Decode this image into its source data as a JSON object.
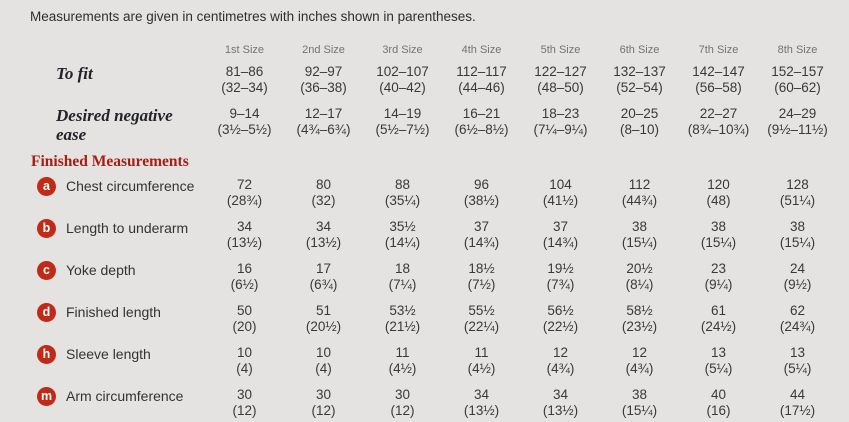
{
  "intro": "Measurements are given in centimetres with inches shown in parentheses.",
  "size_headers": [
    "1st Size",
    "2nd Size",
    "3rd Size",
    "4th Size",
    "5th Size",
    "6th Size",
    "7th Size",
    "8th Size"
  ],
  "fit_rows": [
    {
      "label": "To fit",
      "cm": [
        "81–86",
        "92–97",
        "102–107",
        "112–117",
        "122–127",
        "132–137",
        "142–147",
        "152–157"
      ],
      "in": [
        "(32–34)",
        "(36–38)",
        "(40–42)",
        "(44–46)",
        "(48–50)",
        "(52–54)",
        "(56–58)",
        "(60–62)"
      ]
    },
    {
      "label": "Desired negative ease",
      "cm": [
        "9–14",
        "12–17",
        "14–19",
        "16–21",
        "18–23",
        "20–25",
        "22–27",
        "24–29"
      ],
      "in": [
        "(3½–5½)",
        "(4¾–6¾)",
        "(5½–7½)",
        "(6½–8½)",
        "(7¼–9¼)",
        "(8–10)",
        "(8¾–10¾)",
        "(9½–11½)"
      ]
    }
  ],
  "section_heading": "Finished Measurements",
  "measurement_rows": [
    {
      "badge": "a",
      "label": "Chest circumference",
      "cm": [
        "72",
        "80",
        "88",
        "96",
        "104",
        "112",
        "120",
        "128"
      ],
      "in": [
        "(28¾)",
        "(32)",
        "(35¼)",
        "(38½)",
        "(41½)",
        "(44¾)",
        "(48)",
        "(51¼)"
      ]
    },
    {
      "badge": "b",
      "label": "Length to underarm",
      "cm": [
        "34",
        "34",
        "35½",
        "37",
        "37",
        "38",
        "38",
        "38"
      ],
      "in": [
        "(13½)",
        "(13½)",
        "(14¼)",
        "(14¾)",
        "(14¾)",
        "(15¼)",
        "(15¼)",
        "(15¼)"
      ]
    },
    {
      "badge": "c",
      "label": "Yoke depth",
      "cm": [
        "16",
        "17",
        "18",
        "18½",
        "19½",
        "20½",
        "23",
        "24"
      ],
      "in": [
        "(6½)",
        "(6¾)",
        "(7¼)",
        "(7½)",
        "(7¾)",
        "(8¼)",
        "(9¼)",
        "(9½)"
      ]
    },
    {
      "badge": "d",
      "label": "Finished length",
      "cm": [
        "50",
        "51",
        "53½",
        "55½",
        "56½",
        "58½",
        "61",
        "62"
      ],
      "in": [
        "(20)",
        "(20½)",
        "(21½)",
        "(22¼)",
        "(22½)",
        "(23½)",
        "(24½)",
        "(24¾)"
      ]
    },
    {
      "badge": "h",
      "label": "Sleeve length",
      "cm": [
        "10",
        "10",
        "11",
        "11",
        "12",
        "12",
        "13",
        "13"
      ],
      "in": [
        "(4)",
        "(4)",
        "(4½)",
        "(4½)",
        "(4¾)",
        "(4¾)",
        "(5¼)",
        "(5¼)"
      ]
    },
    {
      "badge": "m",
      "label": "Arm circumference",
      "cm": [
        "30",
        "30",
        "30",
        "34",
        "34",
        "38",
        "40",
        "44"
      ],
      "in": [
        "(12)",
        "(12)",
        "(12)",
        "(13½)",
        "(13½)",
        "(15¼)",
        "(16)",
        "(17½)"
      ]
    }
  ],
  "colors": {
    "background": "#e4e3e1",
    "badge_red": "#c12a16",
    "heading_red": "#a81d15",
    "body_text": "#393939",
    "size_header_gray": "#737373"
  }
}
